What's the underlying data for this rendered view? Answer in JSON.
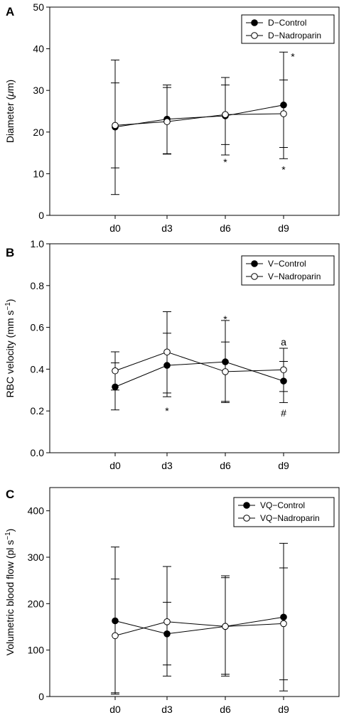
{
  "chart_data": [
    {
      "type": "line",
      "panel_label": "A",
      "ylabel_parts": [
        "Diameter (",
        "μ",
        "m)"
      ],
      "categories": [
        "d0",
        "d3",
        "d6",
        "d9"
      ],
      "ylim": [
        0,
        50
      ],
      "yticks": [
        0,
        10,
        20,
        30,
        40,
        50
      ],
      "ytick_labels": [
        "0",
        "10",
        "20",
        "30",
        "40",
        "50"
      ],
      "grid": false,
      "legend": "top-right",
      "series": [
        {
          "name": "D−Control",
          "marker": "filled",
          "values": [
            21.2,
            23.1,
            23.9,
            26.5
          ],
          "error_low": [
            5.0,
            14.7,
            14.5,
            13.6
          ],
          "error_high": [
            37.3,
            31.3,
            33.1,
            39.2
          ]
        },
        {
          "name": "D−Nadroparin",
          "marker": "open",
          "values": [
            21.6,
            22.5,
            24.2,
            24.4
          ],
          "error_low": [
            11.4,
            14.8,
            17.0,
            16.3
          ],
          "error_high": [
            31.8,
            30.7,
            31.3,
            32.5
          ]
        }
      ],
      "annotations": [
        {
          "text": "*",
          "x": "d6",
          "y": 12.8
        },
        {
          "text": "*",
          "x": "d9",
          "y": 11.0
        },
        {
          "text": "*",
          "x": "d9",
          "y": 38.1
        }
      ]
    },
    {
      "type": "line",
      "panel_label": "B",
      "ylabel_parts": [
        "RBC velocity (mm s",
        "−1",
        ")"
      ],
      "categories": [
        "d0",
        "d3",
        "d6",
        "d9"
      ],
      "ylim": [
        0,
        1.0
      ],
      "yticks": [
        0,
        0.2,
        0.4,
        0.6,
        0.8,
        1.0
      ],
      "ytick_labels": [
        "0.0",
        "0.2",
        "0.4",
        "0.6",
        "0.8",
        "1.0"
      ],
      "grid": false,
      "legend": "top-right",
      "series": [
        {
          "name": "V−Control",
          "marker": "filled",
          "values": [
            0.315,
            0.418,
            0.435,
            0.343
          ],
          "error_low": [
            0.205,
            0.268,
            0.24,
            0.24
          ],
          "error_high": [
            0.43,
            0.572,
            0.633,
            0.5
          ]
        },
        {
          "name": "V−Nadroparin",
          "marker": "open",
          "values": [
            0.392,
            0.482,
            0.388,
            0.397
          ],
          "error_low": [
            0.3,
            0.286,
            0.246,
            0.293
          ],
          "error_high": [
            0.483,
            0.675,
            0.53,
            0.437
          ]
        }
      ],
      "annotations": [
        {
          "text": "*",
          "x": "d3",
          "y": 0.2
        },
        {
          "text": "*",
          "x": "d6",
          "y": 0.64
        },
        {
          "text": "a",
          "x": "d9",
          "y": 0.53
        },
        {
          "text": "#",
          "x": "d9",
          "y": 0.19
        }
      ]
    },
    {
      "type": "line",
      "panel_label": "C",
      "ylabel_parts": [
        "Volumetric blood flow (pl s",
        "−1",
        ")"
      ],
      "categories": [
        "d0",
        "d3",
        "d6",
        "d9"
      ],
      "ylim": [
        0,
        450
      ],
      "yticks": [
        0,
        100,
        200,
        300,
        400
      ],
      "ytick_labels": [
        "0",
        "100",
        "200",
        "300",
        "400"
      ],
      "grid": false,
      "legend": "top-right",
      "series": [
        {
          "name": "VQ−Control",
          "marker": "filled",
          "values": [
            163,
            135,
            151,
            171
          ],
          "error_low": [
            5,
            44,
            44,
            12
          ],
          "error_high": [
            322,
            280,
            260,
            330
          ]
        },
        {
          "name": "VQ−Nadroparin",
          "marker": "open",
          "values": [
            131,
            161,
            151,
            157
          ],
          "error_low": [
            8,
            68,
            48,
            36
          ],
          "error_high": [
            253,
            203,
            256,
            277
          ]
        }
      ],
      "annotations": []
    }
  ]
}
